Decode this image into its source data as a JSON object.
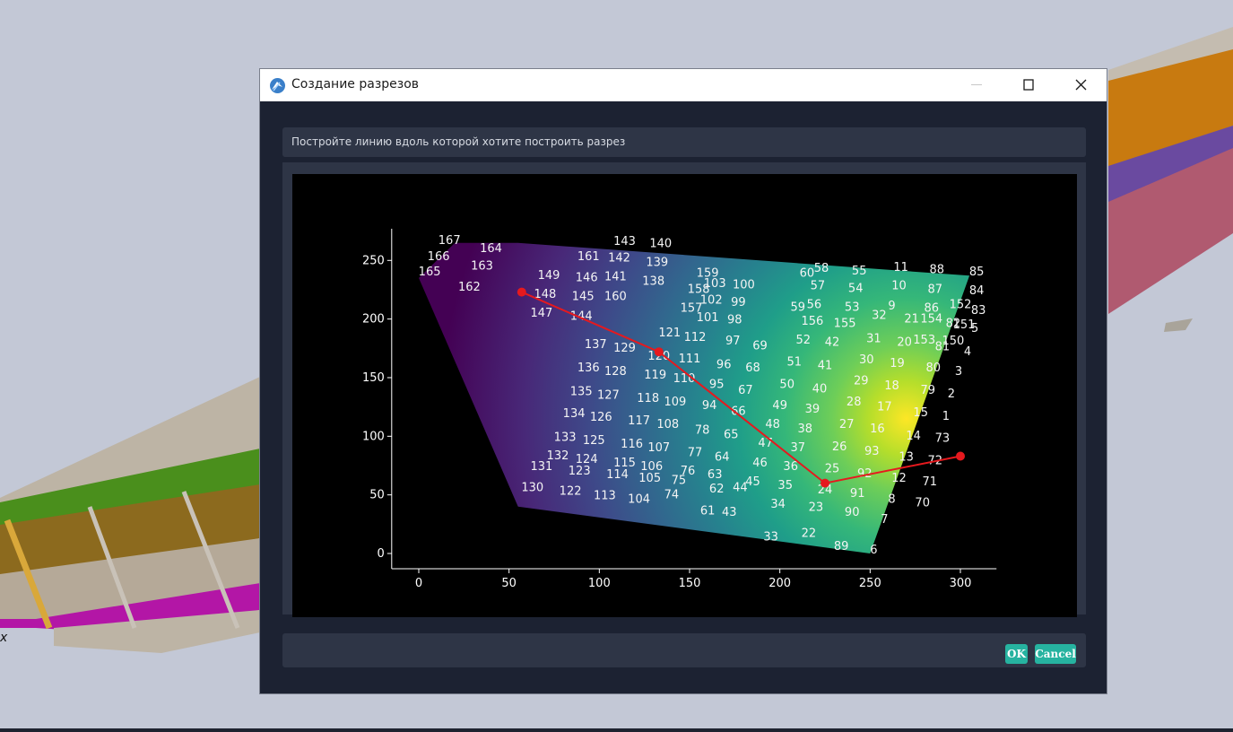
{
  "background": {
    "axis_label": "x"
  },
  "dialog": {
    "title": "Создание разрезов",
    "instruction": "Постройте линию вдоль которой хотите построить разрез",
    "buttons": {
      "ok": "OK",
      "cancel": "Cancel"
    }
  },
  "chart_data": {
    "type": "heatmap",
    "title": "",
    "xlabel": "",
    "ylabel": "",
    "xlim": [
      -15,
      320
    ],
    "ylim": [
      -13,
      277
    ],
    "x_ticks": [
      "0",
      "50",
      "100",
      "150",
      "200",
      "250",
      "300"
    ],
    "y_ticks": [
      "0",
      "50",
      "100",
      "150",
      "200",
      "250"
    ],
    "colormap": "viridis",
    "boundary": [
      [
        0,
        235
      ],
      [
        20,
        265
      ],
      [
        55,
        265
      ],
      [
        305,
        237
      ],
      [
        250,
        0
      ],
      [
        55,
        40
      ]
    ],
    "hotspot": {
      "x": 270,
      "y": 115
    },
    "section_line": {
      "color": "#e6191e",
      "vertices": [
        [
          57,
          223
        ],
        [
          133,
          172
        ],
        [
          225,
          60
        ],
        [
          300,
          83
        ]
      ]
    },
    "labels": [
      {
        "id": "167",
        "x": 17,
        "y": 268
      },
      {
        "id": "164",
        "x": 40,
        "y": 261
      },
      {
        "id": "166",
        "x": 11,
        "y": 254
      },
      {
        "id": "163",
        "x": 35,
        "y": 246
      },
      {
        "id": "165",
        "x": 6,
        "y": 241
      },
      {
        "id": "162",
        "x": 28,
        "y": 228
      },
      {
        "id": "143",
        "x": 114,
        "y": 267
      },
      {
        "id": "140",
        "x": 134,
        "y": 265
      },
      {
        "id": "161",
        "x": 94,
        "y": 254
      },
      {
        "id": "142",
        "x": 111,
        "y": 253
      },
      {
        "id": "139",
        "x": 132,
        "y": 249
      },
      {
        "id": "149",
        "x": 72,
        "y": 238
      },
      {
        "id": "146",
        "x": 93,
        "y": 236
      },
      {
        "id": "141",
        "x": 109,
        "y": 237
      },
      {
        "id": "138",
        "x": 130,
        "y": 233
      },
      {
        "id": "148",
        "x": 70,
        "y": 222
      },
      {
        "id": "145",
        "x": 91,
        "y": 220
      },
      {
        "id": "160",
        "x": 109,
        "y": 220
      },
      {
        "id": "147",
        "x": 68,
        "y": 206
      },
      {
        "id": "144",
        "x": 90,
        "y": 203
      },
      {
        "id": "159",
        "x": 160,
        "y": 240
      },
      {
        "id": "103",
        "x": 164,
        "y": 231
      },
      {
        "id": "100",
        "x": 180,
        "y": 230
      },
      {
        "id": "158",
        "x": 155,
        "y": 226
      },
      {
        "id": "102",
        "x": 162,
        "y": 217
      },
      {
        "id": "99",
        "x": 177,
        "y": 215
      },
      {
        "id": "157",
        "x": 151,
        "y": 210
      },
      {
        "id": "101",
        "x": 160,
        "y": 202
      },
      {
        "id": "98",
        "x": 175,
        "y": 200
      },
      {
        "id": "137",
        "x": 98,
        "y": 179
      },
      {
        "id": "129",
        "x": 114,
        "y": 176
      },
      {
        "id": "121",
        "x": 139,
        "y": 189
      },
      {
        "id": "112",
        "x": 153,
        "y": 185
      },
      {
        "id": "97",
        "x": 174,
        "y": 182
      },
      {
        "id": "69",
        "x": 189,
        "y": 178
      },
      {
        "id": "120",
        "x": 133,
        "y": 169
      },
      {
        "id": "111",
        "x": 150,
        "y": 167
      },
      {
        "id": "136",
        "x": 94,
        "y": 159
      },
      {
        "id": "128",
        "x": 109,
        "y": 156
      },
      {
        "id": "119",
        "x": 131,
        "y": 153
      },
      {
        "id": "110",
        "x": 147,
        "y": 150
      },
      {
        "id": "96",
        "x": 169,
        "y": 162
      },
      {
        "id": "68",
        "x": 185,
        "y": 159
      },
      {
        "id": "135",
        "x": 90,
        "y": 139
      },
      {
        "id": "127",
        "x": 105,
        "y": 136
      },
      {
        "id": "118",
        "x": 127,
        "y": 133
      },
      {
        "id": "109",
        "x": 142,
        "y": 130
      },
      {
        "id": "95",
        "x": 165,
        "y": 145
      },
      {
        "id": "67",
        "x": 181,
        "y": 140
      },
      {
        "id": "94",
        "x": 161,
        "y": 127
      },
      {
        "id": "66",
        "x": 177,
        "y": 122
      },
      {
        "id": "134",
        "x": 86,
        "y": 120
      },
      {
        "id": "126",
        "x": 101,
        "y": 117
      },
      {
        "id": "117",
        "x": 122,
        "y": 114
      },
      {
        "id": "108",
        "x": 138,
        "y": 111
      },
      {
        "id": "78",
        "x": 157,
        "y": 106
      },
      {
        "id": "65",
        "x": 173,
        "y": 102
      },
      {
        "id": "133",
        "x": 81,
        "y": 100
      },
      {
        "id": "125",
        "x": 97,
        "y": 97
      },
      {
        "id": "116",
        "x": 118,
        "y": 94
      },
      {
        "id": "107",
        "x": 133,
        "y": 91
      },
      {
        "id": "77",
        "x": 153,
        "y": 87
      },
      {
        "id": "64",
        "x": 168,
        "y": 83
      },
      {
        "id": "132",
        "x": 77,
        "y": 84
      },
      {
        "id": "124",
        "x": 93,
        "y": 81
      },
      {
        "id": "115",
        "x": 114,
        "y": 78
      },
      {
        "id": "106",
        "x": 129,
        "y": 75
      },
      {
        "id": "76",
        "x": 149,
        "y": 71
      },
      {
        "id": "63",
        "x": 164,
        "y": 68
      },
      {
        "id": "131",
        "x": 68,
        "y": 75
      },
      {
        "id": "123",
        "x": 89,
        "y": 71
      },
      {
        "id": "114",
        "x": 110,
        "y": 68
      },
      {
        "id": "105",
        "x": 128,
        "y": 65
      },
      {
        "id": "75",
        "x": 144,
        "y": 63
      },
      {
        "id": "62",
        "x": 165,
        "y": 56
      },
      {
        "id": "44",
        "x": 178,
        "y": 57
      },
      {
        "id": "130",
        "x": 63,
        "y": 57
      },
      {
        "id": "122",
        "x": 84,
        "y": 54
      },
      {
        "id": "113",
        "x": 103,
        "y": 50
      },
      {
        "id": "104",
        "x": 122,
        "y": 47
      },
      {
        "id": "74",
        "x": 140,
        "y": 51
      },
      {
        "id": "61",
        "x": 160,
        "y": 37
      },
      {
        "id": "43",
        "x": 172,
        "y": 36
      },
      {
        "id": "60",
        "x": 215,
        "y": 240
      },
      {
        "id": "58",
        "x": 223,
        "y": 244
      },
      {
        "id": "55",
        "x": 244,
        "y": 242
      },
      {
        "id": "11",
        "x": 267,
        "y": 245
      },
      {
        "id": "88",
        "x": 287,
        "y": 243
      },
      {
        "id": "85",
        "x": 309,
        "y": 241
      },
      {
        "id": "57",
        "x": 221,
        "y": 229
      },
      {
        "id": "54",
        "x": 242,
        "y": 227
      },
      {
        "id": "10",
        "x": 266,
        "y": 229
      },
      {
        "id": "87",
        "x": 286,
        "y": 226
      },
      {
        "id": "84",
        "x": 309,
        "y": 225
      },
      {
        "id": "59",
        "x": 210,
        "y": 211
      },
      {
        "id": "56",
        "x": 219,
        "y": 213
      },
      {
        "id": "53",
        "x": 240,
        "y": 211
      },
      {
        "id": "9",
        "x": 262,
        "y": 212
      },
      {
        "id": "86",
        "x": 284,
        "y": 210
      },
      {
        "id": "152",
        "x": 300,
        "y": 213
      },
      {
        "id": "83",
        "x": 310,
        "y": 208
      },
      {
        "id": "156",
        "x": 218,
        "y": 199
      },
      {
        "id": "155",
        "x": 236,
        "y": 197
      },
      {
        "id": "32",
        "x": 255,
        "y": 204
      },
      {
        "id": "21",
        "x": 273,
        "y": 201
      },
      {
        "id": "154",
        "x": 284,
        "y": 201
      },
      {
        "id": "82",
        "x": 296,
        "y": 197
      },
      {
        "id": "151",
        "x": 302,
        "y": 196
      },
      {
        "id": "5",
        "x": 308,
        "y": 193
      },
      {
        "id": "52",
        "x": 213,
        "y": 183
      },
      {
        "id": "42",
        "x": 229,
        "y": 181
      },
      {
        "id": "31",
        "x": 252,
        "y": 184
      },
      {
        "id": "20",
        "x": 269,
        "y": 181
      },
      {
        "id": "153",
        "x": 280,
        "y": 183
      },
      {
        "id": "150",
        "x": 296,
        "y": 182
      },
      {
        "id": "81",
        "x": 290,
        "y": 177
      },
      {
        "id": "4",
        "x": 304,
        "y": 173
      },
      {
        "id": "51",
        "x": 208,
        "y": 164
      },
      {
        "id": "41",
        "x": 225,
        "y": 161
      },
      {
        "id": "30",
        "x": 248,
        "y": 166
      },
      {
        "id": "19",
        "x": 265,
        "y": 163
      },
      {
        "id": "80",
        "x": 285,
        "y": 159
      },
      {
        "id": "3",
        "x": 299,
        "y": 156
      },
      {
        "id": "50",
        "x": 204,
        "y": 145
      },
      {
        "id": "40",
        "x": 222,
        "y": 141
      },
      {
        "id": "29",
        "x": 245,
        "y": 148
      },
      {
        "id": "18",
        "x": 262,
        "y": 144
      },
      {
        "id": "79",
        "x": 282,
        "y": 140
      },
      {
        "id": "2",
        "x": 295,
        "y": 137
      },
      {
        "id": "49",
        "x": 200,
        "y": 127
      },
      {
        "id": "39",
        "x": 218,
        "y": 124
      },
      {
        "id": "28",
        "x": 241,
        "y": 130
      },
      {
        "id": "17",
        "x": 258,
        "y": 126
      },
      {
        "id": "15",
        "x": 278,
        "y": 121
      },
      {
        "id": "1",
        "x": 292,
        "y": 118
      },
      {
        "id": "48",
        "x": 196,
        "y": 111
      },
      {
        "id": "38",
        "x": 214,
        "y": 107
      },
      {
        "id": "27",
        "x": 237,
        "y": 111
      },
      {
        "id": "16",
        "x": 254,
        "y": 107
      },
      {
        "id": "14",
        "x": 274,
        "y": 101
      },
      {
        "id": "73",
        "x": 290,
        "y": 99
      },
      {
        "id": "47",
        "x": 192,
        "y": 95
      },
      {
        "id": "37",
        "x": 210,
        "y": 91
      },
      {
        "id": "26",
        "x": 233,
        "y": 92
      },
      {
        "id": "93",
        "x": 251,
        "y": 88
      },
      {
        "id": "13",
        "x": 270,
        "y": 83
      },
      {
        "id": "72",
        "x": 286,
        "y": 80
      },
      {
        "id": "46",
        "x": 189,
        "y": 78
      },
      {
        "id": "36",
        "x": 206,
        "y": 75
      },
      {
        "id": "25",
        "x": 229,
        "y": 73
      },
      {
        "id": "92",
        "x": 247,
        "y": 69
      },
      {
        "id": "12",
        "x": 266,
        "y": 65
      },
      {
        "id": "71",
        "x": 283,
        "y": 62
      },
      {
        "id": "45",
        "x": 185,
        "y": 62
      },
      {
        "id": "35",
        "x": 203,
        "y": 59
      },
      {
        "id": "24",
        "x": 225,
        "y": 55
      },
      {
        "id": "91",
        "x": 243,
        "y": 52
      },
      {
        "id": "8",
        "x": 262,
        "y": 47
      },
      {
        "id": "70",
        "x": 279,
        "y": 44
      },
      {
        "id": "34",
        "x": 199,
        "y": 43
      },
      {
        "id": "23",
        "x": 220,
        "y": 40
      },
      {
        "id": "90",
        "x": 240,
        "y": 36
      },
      {
        "id": "7",
        "x": 258,
        "y": 30
      },
      {
        "id": "33",
        "x": 195,
        "y": 15
      },
      {
        "id": "22",
        "x": 216,
        "y": 18
      },
      {
        "id": "89",
        "x": 234,
        "y": 7
      },
      {
        "id": "6",
        "x": 252,
        "y": 4
      }
    ]
  }
}
